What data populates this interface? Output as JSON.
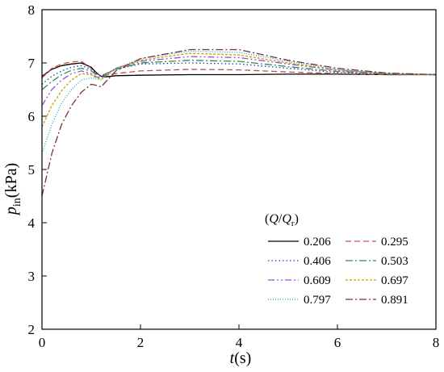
{
  "chart_data": {
    "type": "line",
    "xlabel": {
      "main": "t",
      "rest": "(s)"
    },
    "ylabel": {
      "main": "p",
      "sub": "in",
      "rest": "(kPa)"
    },
    "xlim": [
      0,
      8
    ],
    "ylim": [
      2,
      8
    ],
    "xticks": [
      "0",
      "2",
      "4",
      "6",
      "8"
    ],
    "yticks": [
      "2",
      "3",
      "4",
      "5",
      "6",
      "7",
      "8"
    ],
    "grid": false,
    "legend": {
      "position": "lower-right",
      "title": {
        "open": "(",
        "q": "Q",
        "slash": "/",
        "qr": "Q",
        "sub": "r",
        "close": ")"
      }
    },
    "series": [
      {
        "name": "0.206",
        "color": "#000000",
        "dash": "none",
        "x": [
          0,
          0.2,
          0.4,
          0.6,
          0.8,
          1.0,
          1.1,
          1.2,
          1.3,
          1.5,
          2,
          3,
          4,
          5,
          6,
          7,
          8
        ],
        "y": [
          6.75,
          6.88,
          6.95,
          6.98,
          7.0,
          6.92,
          6.82,
          6.75,
          6.74,
          6.76,
          6.77,
          6.78,
          6.78,
          6.79,
          6.79,
          6.78,
          6.78
        ]
      },
      {
        "name": "0.295",
        "color": "#c0504d",
        "dash": "7,4",
        "x": [
          0,
          0.2,
          0.4,
          0.6,
          0.8,
          1.0,
          1.1,
          1.2,
          1.3,
          1.5,
          2,
          3,
          4,
          5,
          6,
          7,
          8
        ],
        "y": [
          6.72,
          6.9,
          6.98,
          7.02,
          7.03,
          6.9,
          6.8,
          6.76,
          6.77,
          6.8,
          6.85,
          6.88,
          6.87,
          6.83,
          6.8,
          6.78,
          6.78
        ]
      },
      {
        "name": "0.406",
        "color": "#1f3fb4",
        "dash": "1.5,3",
        "x": [
          0,
          0.2,
          0.4,
          0.6,
          0.8,
          1.0,
          1.1,
          1.2,
          1.3,
          1.5,
          2,
          3,
          4,
          5,
          6,
          7,
          8
        ],
        "y": [
          6.6,
          6.75,
          6.85,
          6.92,
          6.95,
          6.88,
          6.8,
          6.76,
          6.8,
          6.88,
          6.98,
          7.0,
          6.98,
          6.9,
          6.82,
          6.79,
          6.78
        ]
      },
      {
        "name": "0.503",
        "color": "#2e8b57",
        "dash": "9,3,2,3",
        "x": [
          0,
          0.2,
          0.4,
          0.6,
          0.8,
          1.0,
          1.1,
          1.2,
          1.3,
          1.5,
          2,
          3,
          4,
          5,
          6,
          7,
          8
        ],
        "y": [
          6.5,
          6.65,
          6.78,
          6.86,
          6.9,
          6.85,
          6.78,
          6.75,
          6.8,
          6.88,
          7.0,
          7.05,
          7.03,
          6.93,
          6.84,
          6.79,
          6.78
        ]
      },
      {
        "name": "0.609",
        "color": "#9a4fd0",
        "dash": "8,3,2,3,2,3",
        "x": [
          0,
          0.2,
          0.4,
          0.6,
          0.8,
          1.0,
          1.1,
          1.2,
          1.3,
          1.5,
          2,
          3,
          4,
          5,
          6,
          7,
          8
        ],
        "y": [
          6.2,
          6.5,
          6.68,
          6.8,
          6.85,
          6.8,
          6.74,
          6.72,
          6.78,
          6.9,
          7.03,
          7.12,
          7.1,
          6.98,
          6.86,
          6.8,
          6.78
        ]
      },
      {
        "name": "0.697",
        "color": "#c8a000",
        "dash": "3,2",
        "x": [
          0,
          0.2,
          0.4,
          0.6,
          0.8,
          1.0,
          1.1,
          1.2,
          1.3,
          1.5,
          2,
          3,
          4,
          5,
          6,
          7,
          8
        ],
        "y": [
          5.8,
          6.2,
          6.48,
          6.68,
          6.8,
          6.78,
          6.72,
          6.7,
          6.76,
          6.9,
          7.05,
          7.18,
          7.15,
          7.0,
          6.87,
          6.8,
          6.78
        ]
      },
      {
        "name": "0.797",
        "color": "#17a9c9",
        "dash": "1,2",
        "x": [
          0,
          0.2,
          0.4,
          0.6,
          0.8,
          1.0,
          1.1,
          1.2,
          1.3,
          1.5,
          2,
          3,
          4,
          5,
          6,
          7,
          8
        ],
        "y": [
          5.3,
          5.85,
          6.25,
          6.5,
          6.68,
          6.72,
          6.7,
          6.68,
          6.75,
          6.9,
          7.08,
          7.22,
          7.2,
          7.03,
          6.88,
          6.8,
          6.78
        ]
      },
      {
        "name": "0.891",
        "color": "#7b2d3b",
        "dash": "9,3,2,3",
        "x": [
          0,
          0.2,
          0.4,
          0.6,
          0.8,
          1.0,
          1.1,
          1.2,
          1.3,
          1.5,
          2,
          3,
          4,
          5,
          6,
          7,
          8
        ],
        "y": [
          4.5,
          5.3,
          5.85,
          6.2,
          6.45,
          6.6,
          6.58,
          6.55,
          6.65,
          6.85,
          7.08,
          7.25,
          7.25,
          7.05,
          6.9,
          6.81,
          6.78
        ]
      }
    ]
  }
}
